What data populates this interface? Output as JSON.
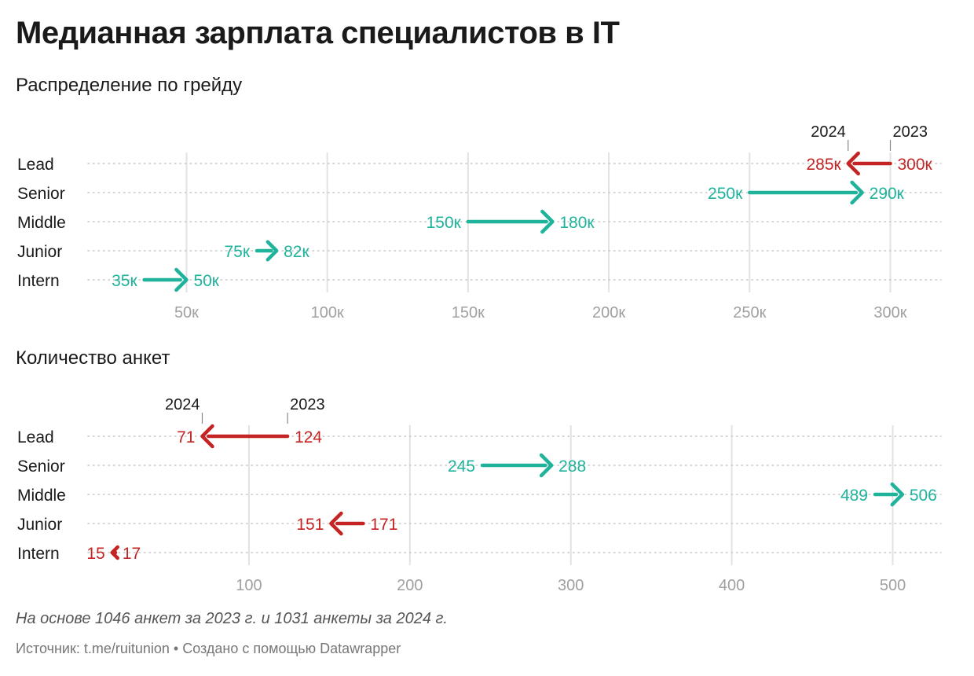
{
  "title": "Медианная зарплата специалистов в IT",
  "colors": {
    "increase": "#1fb39c",
    "decrease": "#c42424",
    "grid": "#e2e2e2",
    "tick": "#a0a0a0",
    "dots": "#c8c8c8"
  },
  "chart_data": [
    {
      "type": "arrow",
      "title": "Распределение по грейду",
      "categories": [
        "Lead",
        "Senior",
        "Middle",
        "Junior",
        "Intern"
      ],
      "series": [
        {
          "name": "2023",
          "values": [
            300,
            250,
            150,
            75,
            35
          ]
        },
        {
          "name": "2024",
          "values": [
            285,
            290,
            180,
            82,
            50
          ]
        }
      ],
      "value_labels_2023": [
        "300к",
        "250к",
        "150к",
        "75к",
        "35к"
      ],
      "value_labels_2024": [
        "285к",
        "290к",
        "180к",
        "82к",
        "50к"
      ],
      "xticks": [
        50,
        100,
        150,
        200,
        250,
        300
      ],
      "xtick_labels": [
        "50к",
        "100к",
        "150к",
        "200к",
        "250к",
        "300к"
      ],
      "xlim": [
        15,
        318
      ],
      "grid": true,
      "year_labels": {
        "from": "2023",
        "to": "2024"
      }
    },
    {
      "type": "arrow",
      "title": "Количество анкет",
      "categories": [
        "Lead",
        "Senior",
        "Middle",
        "Junior",
        "Intern"
      ],
      "series": [
        {
          "name": "2023",
          "values": [
            124,
            245,
            489,
            171,
            17
          ]
        },
        {
          "name": "2024",
          "values": [
            71,
            288,
            506,
            151,
            15
          ]
        }
      ],
      "value_labels_2023": [
        "124",
        "245",
        "489",
        "171",
        "17"
      ],
      "value_labels_2024": [
        "71",
        "288",
        "506",
        "151",
        "15"
      ],
      "xticks": [
        100,
        200,
        300,
        400,
        500
      ],
      "xtick_labels": [
        "100",
        "200",
        "300",
        "400",
        "500"
      ],
      "xlim": [
        0,
        530
      ],
      "grid": true,
      "year_labels": {
        "from": "2023",
        "to": "2024"
      }
    }
  ],
  "note": "На основе 1046 анкет за 2023 г. и 1031 анкеты за 2024 г.",
  "source": "Источник: t.me/ruitunion • Создано с помощью Datawrapper"
}
